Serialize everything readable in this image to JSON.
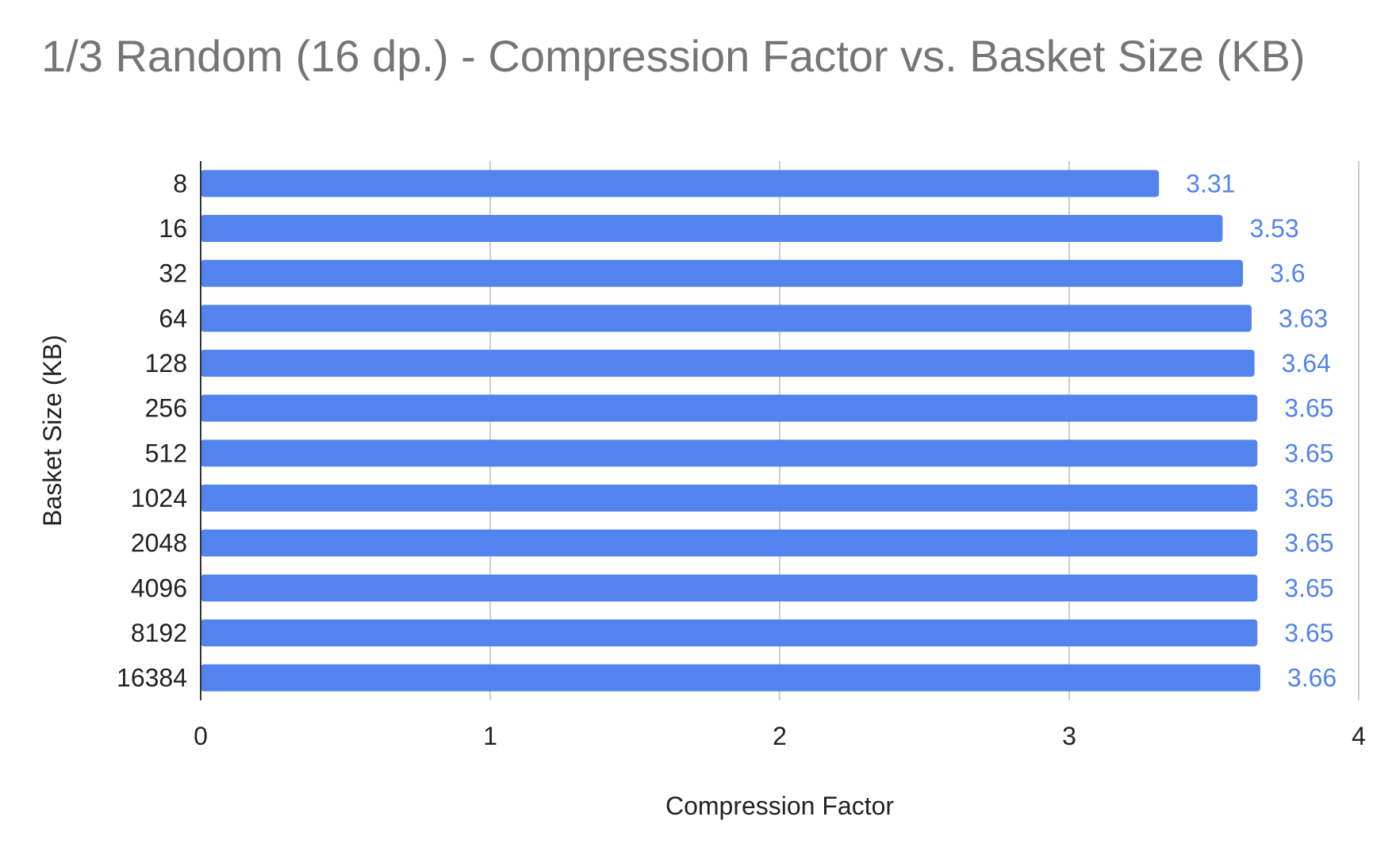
{
  "chart_data": {
    "type": "bar",
    "orientation": "horizontal",
    "title": "1/3 Random (16 dp.) - Compression Factor vs. Basket Size (KB)",
    "xlabel": "Compression Factor",
    "ylabel": "Basket Size (KB)",
    "categories": [
      "8",
      "16",
      "32",
      "64",
      "128",
      "256",
      "512",
      "1024",
      "2048",
      "4096",
      "8192",
      "16384"
    ],
    "values": [
      3.31,
      3.53,
      3.6,
      3.63,
      3.64,
      3.65,
      3.65,
      3.65,
      3.65,
      3.65,
      3.65,
      3.66
    ],
    "data_labels": [
      "3.31",
      "3.53",
      "3.6",
      "3.63",
      "3.64",
      "3.65",
      "3.65",
      "3.65",
      "3.65",
      "3.65",
      "3.65",
      "3.66"
    ],
    "xlim": [
      0,
      4
    ],
    "xticks": [
      "0",
      "1",
      "2",
      "3",
      "4"
    ],
    "grid": true,
    "legend": "none",
    "colors": {
      "bar": "#5383ec",
      "label": "#5383ec",
      "grid": "#cccccc",
      "axis": "#333333",
      "title": "#757575"
    }
  }
}
